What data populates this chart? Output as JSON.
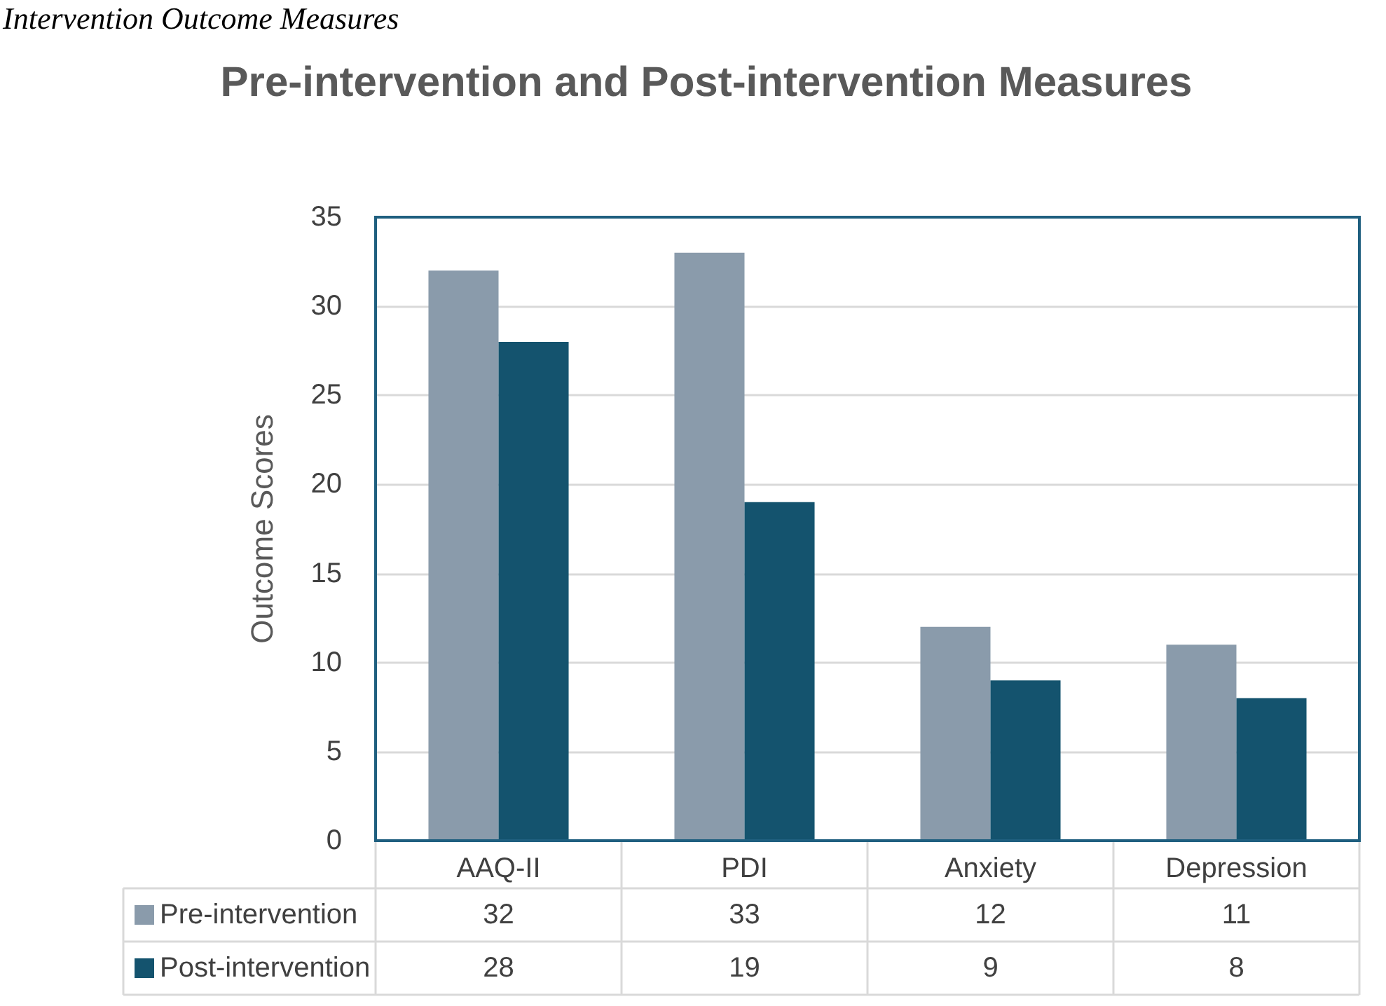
{
  "chart_data": {
    "type": "bar",
    "title": "Pre-intervention and Post-intervention Measures",
    "ylabel": "Outcome Scores",
    "annotations": [
      "Intervention Outcome Measures"
    ],
    "categories": [
      "AAQ-II",
      "PDI",
      "Anxiety",
      "Depression"
    ],
    "series": [
      {
        "name": "Pre-intervention",
        "color": "#8a9bab",
        "values": [
          32,
          33,
          12,
          11
        ]
      },
      {
        "name": "Post-intervention",
        "color": "#14536e",
        "values": [
          28,
          19,
          9,
          8
        ]
      }
    ],
    "ylim": [
      0,
      35
    ],
    "yticks": [
      0,
      5,
      10,
      15,
      20,
      25,
      30,
      35
    ],
    "grid": "y",
    "legend": "bottom",
    "data_labels": true
  }
}
